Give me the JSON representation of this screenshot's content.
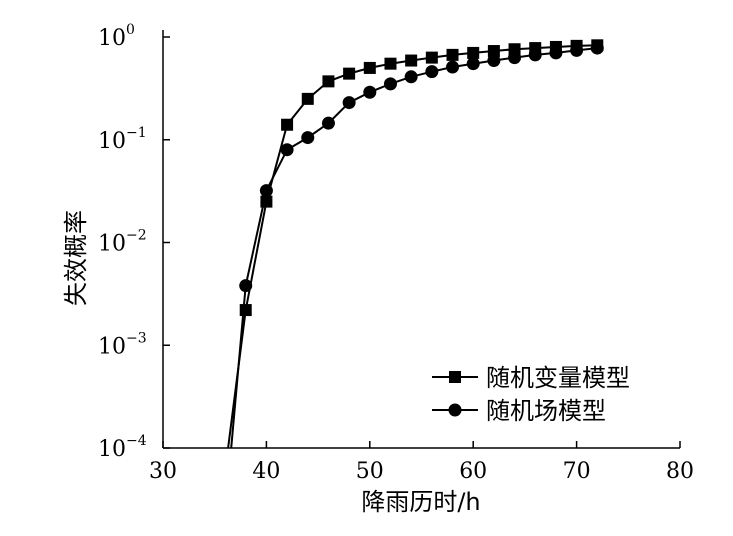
{
  "chart_data": {
    "type": "line",
    "xlabel": "降雨历时/h",
    "ylabel": "失效概率",
    "xlim": [
      30,
      80
    ],
    "ylim": [
      0.0001,
      1
    ],
    "yscale": "log",
    "x_ticks": [
      30,
      40,
      50,
      60,
      70,
      80
    ],
    "y_ticks": [
      {
        "base": "10",
        "exp": "0",
        "value": 1
      },
      {
        "base": "10",
        "exp": "−1",
        "value": 0.1
      },
      {
        "base": "10",
        "exp": "−2",
        "value": 0.01
      },
      {
        "base": "10",
        "exp": "−3",
        "value": 0.001
      },
      {
        "base": "10",
        "exp": "−4",
        "value": 0.0001
      }
    ],
    "grid": false,
    "legend_position": "bottom-right",
    "series": [
      {
        "name": "随机变量模型",
        "marker": "square",
        "x": [
          38,
          40,
          42,
          44,
          46,
          48,
          50,
          52,
          54,
          56,
          58,
          60,
          62,
          64,
          66,
          68,
          70,
          72
        ],
        "y": [
          0.0022,
          0.025,
          0.14,
          0.25,
          0.37,
          0.44,
          0.5,
          0.55,
          0.59,
          0.63,
          0.67,
          0.7,
          0.73,
          0.76,
          0.78,
          0.8,
          0.82,
          0.83
        ],
        "line_only": [
          [
            36.3,
            0.0001
          ]
        ]
      },
      {
        "name": "随机场模型",
        "marker": "circle",
        "x": [
          38,
          40,
          42,
          44,
          46,
          48,
          50,
          52,
          54,
          56,
          58,
          60,
          62,
          64,
          66,
          68,
          70,
          72
        ],
        "y": [
          0.0038,
          0.032,
          0.08,
          0.105,
          0.145,
          0.23,
          0.29,
          0.35,
          0.41,
          0.46,
          0.51,
          0.55,
          0.59,
          0.63,
          0.67,
          0.7,
          0.74,
          0.78
        ],
        "line_only": [
          [
            36.6,
            0.0001
          ]
        ]
      }
    ]
  }
}
